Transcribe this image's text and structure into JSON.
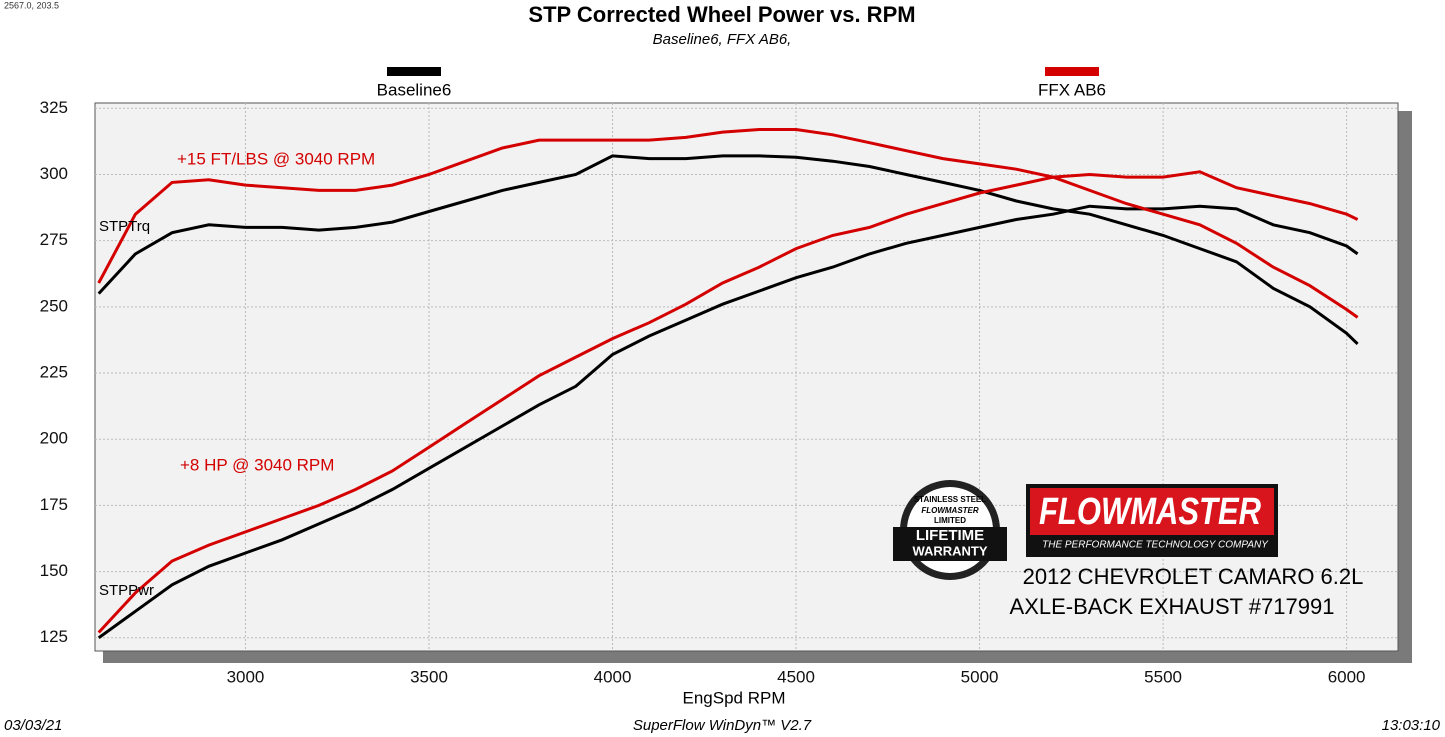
{
  "chart_data": {
    "type": "line",
    "title": "STP Corrected Wheel Power vs. RPM",
    "subtitle": "Baseline6, FFX AB6,",
    "corner_text": "2567.0, 203.5",
    "x_label": "EngSpd  RPM",
    "xlim": [
      2590,
      6140
    ],
    "ylim": [
      120,
      327
    ],
    "xticks": [
      3000,
      3500,
      4000,
      4500,
      5000,
      5500,
      6000
    ],
    "yticks": [
      125,
      150,
      175,
      200,
      225,
      250,
      275,
      300,
      325
    ],
    "grid": true,
    "x": [
      2600,
      2700,
      2800,
      2900,
      3000,
      3100,
      3200,
      3300,
      3400,
      3500,
      3600,
      3700,
      3800,
      3900,
      4000,
      4100,
      4200,
      4300,
      4400,
      4500,
      4600,
      4700,
      4800,
      4900,
      5000,
      5100,
      5200,
      5300,
      5400,
      5500,
      5600,
      5700,
      5800,
      5900,
      6000,
      6030
    ],
    "series": [
      {
        "name": "Baseline6",
        "color": "#000000",
        "torque": [
          255,
          270,
          278,
          281,
          280,
          280,
          279,
          280,
          282,
          286,
          290,
          294,
          297,
          300,
          307,
          306,
          306,
          307,
          307,
          306.5,
          305,
          303,
          300,
          297,
          294,
          290,
          287,
          285,
          281,
          277,
          272,
          267,
          257,
          250,
          240,
          236
        ],
        "power": [
          125,
          135,
          145,
          152,
          157,
          162,
          168,
          174,
          181,
          189,
          197,
          205,
          213,
          220,
          232,
          239,
          245,
          251,
          256,
          261,
          265,
          270,
          274,
          277,
          280,
          283,
          285,
          288,
          287,
          287,
          288,
          287,
          281,
          278,
          273,
          270
        ]
      },
      {
        "name": "FFX AB6",
        "color": "#d40000",
        "torque": [
          259,
          285,
          297,
          298,
          296,
          295,
          294,
          294,
          296,
          300,
          305,
          310,
          313,
          313,
          313,
          313,
          314,
          316,
          317,
          317,
          315,
          312,
          309,
          306,
          304,
          302,
          299,
          294,
          289,
          285,
          281,
          274,
          265,
          258,
          249,
          246
        ],
        "power": [
          127,
          142,
          154,
          160,
          165,
          170,
          175,
          181,
          188,
          197,
          206,
          215,
          224,
          231,
          238,
          244,
          251,
          259,
          265,
          272,
          277,
          280,
          285,
          289,
          293,
          296,
          299,
          300,
          299,
          299,
          301,
          295,
          292,
          289,
          285,
          283
        ]
      }
    ],
    "curve_labels": {
      "torque": "STPTrq",
      "power": "STPPwr"
    },
    "annotations": {
      "torque": "+15 FT/LBS @ 3040 RPM",
      "power": "+8 HP @ 3040 RPM"
    },
    "badge": {
      "top": "STAINLESS STEEL",
      "brand": "FLOWMASTER",
      "limited": "LIMITED",
      "line1": "LIFETIME",
      "line2": "WARRANTY"
    },
    "brand": {
      "name": "FLOWMASTER",
      "tagline": "THE PERFORMANCE TECHNOLOGY COMPANY"
    },
    "vehicle": [
      "2012 CHEVROLET CAMARO 6.2L",
      "AXLE-BACK EXHAUST #717991"
    ],
    "footer": {
      "left": "03/03/21",
      "center": "SuperFlow WinDyn™  V2.7",
      "right": "13:03:10"
    }
  }
}
